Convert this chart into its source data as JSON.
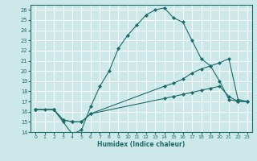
{
  "xlabel": "Humidex (Indice chaleur)",
  "ylabel": "",
  "bg_color": "#cde8e8",
  "line_color": "#1a6b6b",
  "grid_color": "#ffffff",
  "xlim": [
    -0.5,
    23.5
  ],
  "ylim": [
    14,
    26.5
  ],
  "yticks": [
    14,
    15,
    16,
    17,
    18,
    19,
    20,
    21,
    22,
    23,
    24,
    25,
    26
  ],
  "xticks": [
    0,
    1,
    2,
    3,
    4,
    5,
    6,
    7,
    8,
    9,
    10,
    11,
    12,
    13,
    14,
    15,
    16,
    17,
    18,
    19,
    20,
    21,
    22,
    23
  ],
  "series1_x": [
    0,
    1,
    2,
    3,
    4,
    5,
    6,
    7,
    8,
    9,
    10,
    11,
    12,
    13,
    14,
    15,
    16,
    17,
    18,
    19,
    20,
    21,
    22,
    23
  ],
  "series1_y": [
    16.2,
    16.2,
    16.2,
    15.0,
    13.8,
    14.2,
    16.5,
    18.5,
    20.0,
    22.2,
    23.5,
    24.5,
    25.5,
    26.0,
    26.2,
    25.2,
    24.8,
    23.0,
    21.2,
    20.5,
    19.0,
    17.2,
    17.0,
    17.0
  ],
  "series2_x": [
    0,
    2,
    3,
    4,
    5,
    6,
    14,
    15,
    16,
    17,
    18,
    19,
    20,
    21,
    22,
    23
  ],
  "series2_y": [
    16.2,
    16.2,
    15.2,
    15.0,
    15.0,
    15.8,
    18.5,
    18.8,
    19.2,
    19.8,
    20.2,
    20.5,
    20.8,
    21.2,
    17.2,
    17.0
  ],
  "series3_x": [
    0,
    2,
    3,
    4,
    5,
    6,
    14,
    15,
    16,
    17,
    18,
    19,
    20,
    21,
    22,
    23
  ],
  "series3_y": [
    16.2,
    16.2,
    15.2,
    15.0,
    15.0,
    15.8,
    17.3,
    17.5,
    17.7,
    17.9,
    18.1,
    18.3,
    18.5,
    17.5,
    17.0,
    17.0
  ]
}
